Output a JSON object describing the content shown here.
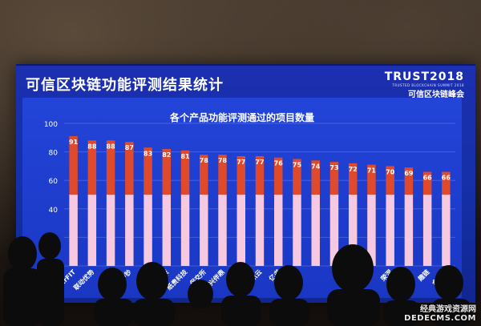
{
  "slide": {
    "title": "可信区块链功能评测结果统计",
    "event_big": "TRUST2018",
    "event_small": "TRUSTED BLOCKCHAIN SUMMIT 2018",
    "event_cn": "可信区块链峰会"
  },
  "chart_data": {
    "type": "bar",
    "title": "各个产品功能评测通过的项目数量",
    "xlabel": "",
    "ylabel": "",
    "ylim": [
      0,
      100
    ],
    "yticks": [
      0,
      20,
      40,
      60,
      80,
      100
    ],
    "grid": true,
    "categories": [
      "trFIT",
      "联动优势",
      "智链",
      "中钞",
      "华为",
      "分布科技",
      "纸贵科技",
      "保交所",
      "中兴伴鼎",
      "百度",
      "腾讯云",
      "亿书",
      "太一云",
      "",
      "",
      "",
      "",
      "荣涅",
      "中证通用",
      "趣链",
      "金窝窝"
    ],
    "values": [
      91,
      88,
      88,
      87,
      83,
      82,
      81,
      78,
      78,
      77,
      77,
      76,
      75,
      74,
      73,
      72,
      71,
      70,
      69,
      66,
      66
    ],
    "base_value": 50,
    "colors": {
      "top": "#e04a2c",
      "bottom": "#f7c9e0"
    }
  },
  "watermark": {
    "line1": "经典游戏资源网",
    "line2": "DEDECMS.COM"
  }
}
